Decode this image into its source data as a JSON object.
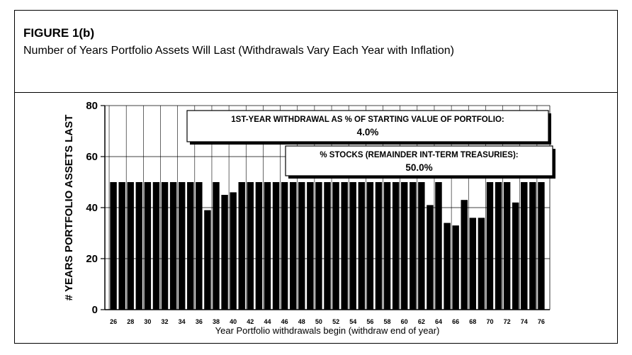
{
  "figure": {
    "label": "FIGURE 1(b)",
    "caption": "Number of Years Portfolio Assets Will Last (Withdrawals Vary Each Year with Inflation)"
  },
  "chart_data": {
    "type": "bar",
    "xlabel": "Year Portfolio withdrawals begin (withdraw end of year)",
    "ylabel": "# YEARS PORTFOLIO ASSETS LAST",
    "ylim": [
      0,
      80
    ],
    "yticks": [
      0,
      20,
      40,
      60,
      80
    ],
    "grid": true,
    "bar_color": "#000000",
    "categories": [
      "26",
      "27",
      "28",
      "29",
      "30",
      "31",
      "32",
      "33",
      "34",
      "35",
      "36",
      "37",
      "38",
      "39",
      "40",
      "41",
      "42",
      "43",
      "44",
      "45",
      "46",
      "47",
      "48",
      "49",
      "50",
      "51",
      "52",
      "53",
      "54",
      "55",
      "56",
      "57",
      "58",
      "59",
      "60",
      "61",
      "62",
      "63",
      "64",
      "65",
      "66",
      "67",
      "68",
      "69",
      "70",
      "71",
      "72",
      "73",
      "74",
      "75",
      "76"
    ],
    "values": [
      50,
      50,
      50,
      50,
      50,
      50,
      50,
      50,
      50,
      50,
      50,
      39,
      50,
      45,
      46,
      50,
      50,
      50,
      50,
      50,
      50,
      50,
      50,
      50,
      50,
      50,
      50,
      50,
      50,
      50,
      50,
      50,
      50,
      50,
      50,
      50,
      50,
      41,
      50,
      34,
      33,
      43,
      36,
      36,
      50,
      50,
      50,
      42,
      50,
      50,
      50
    ],
    "tick_labels": [
      "26",
      "28",
      "30",
      "32",
      "34",
      "36",
      "38",
      "40",
      "42",
      "44",
      "46",
      "48",
      "50",
      "52",
      "54",
      "56",
      "58",
      "60",
      "62",
      "64",
      "66",
      "68",
      "70",
      "72",
      "74",
      "76"
    ],
    "annotations": [
      {
        "text": "1ST-YEAR WITHDRAWAL AS % OF STARTING VALUE OF PORTFOLIO:",
        "value": "4.0%"
      },
      {
        "text": "% STOCKS (REMAINDER INT-TERM TREASURIES):",
        "value": "50.0%"
      }
    ]
  }
}
